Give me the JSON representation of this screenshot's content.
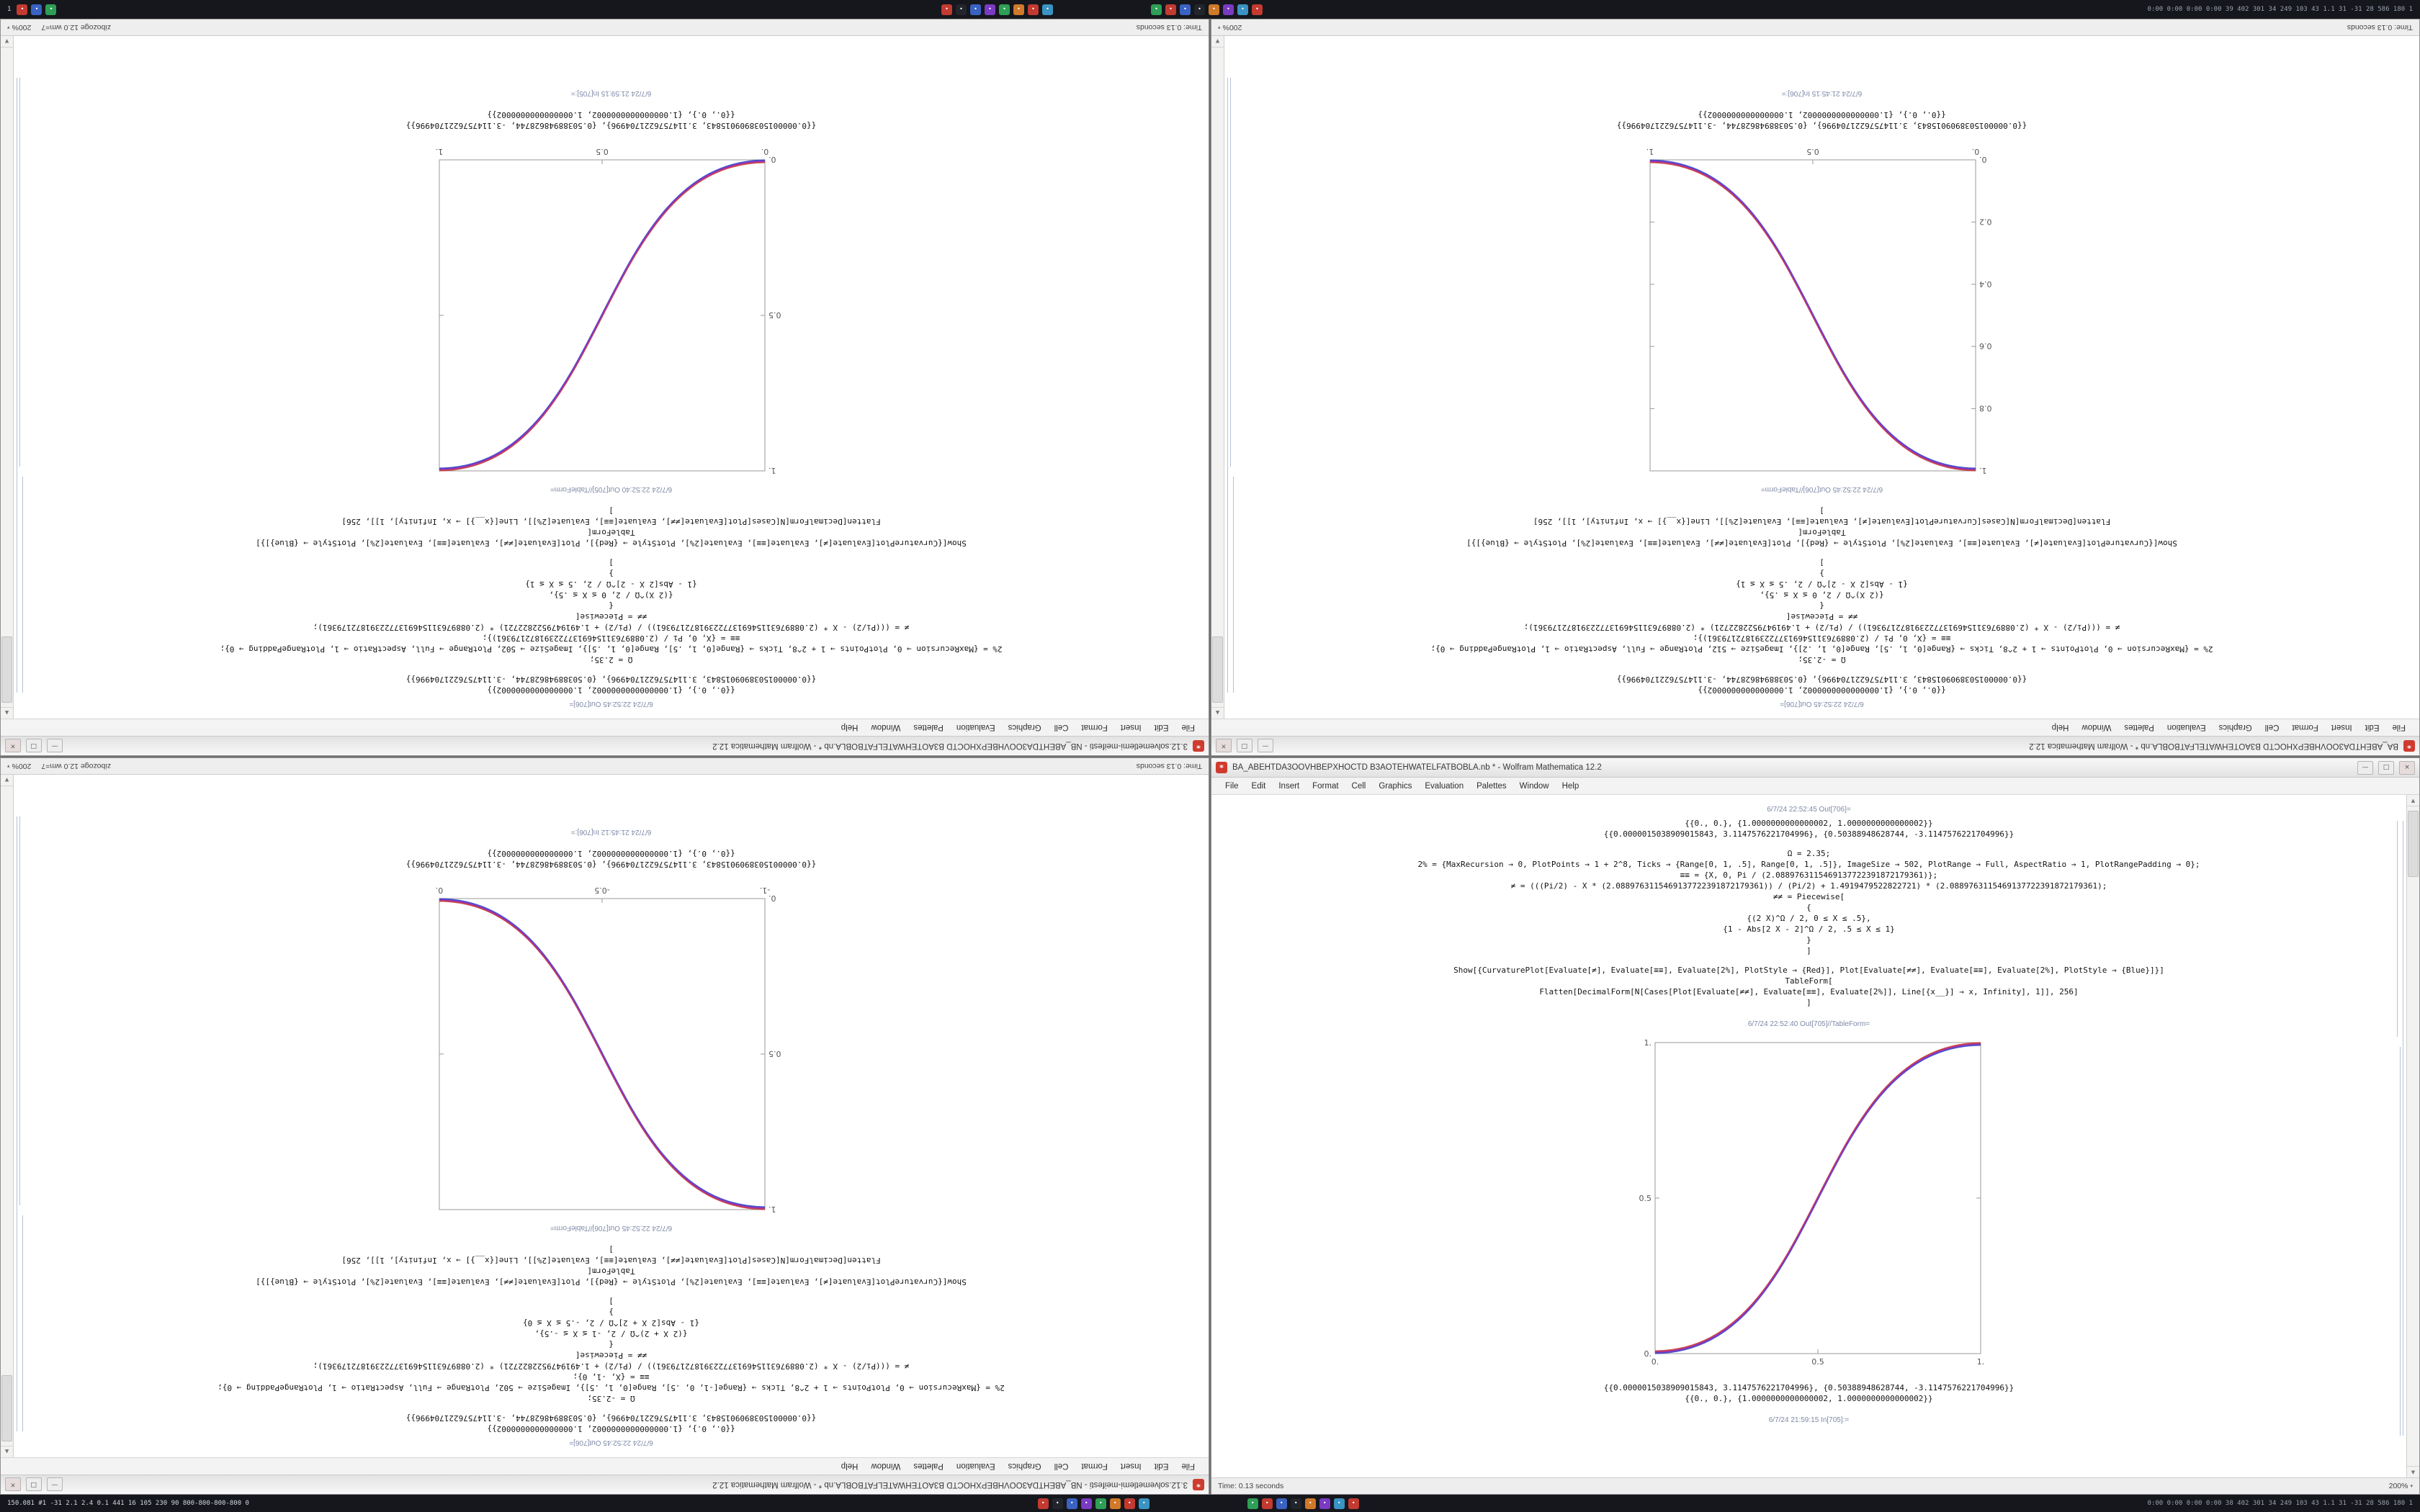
{
  "taskbar_top": {
    "left_text": "1",
    "icon_glyph": "•",
    "left_icons": [
      "#c23a30",
      "#3a62c2",
      "#2f9e57"
    ],
    "cluster1": [
      "#c23a30",
      "#23252d",
      "#3a62c2",
      "#7a3ac2",
      "#2f9e57",
      "#d0792a",
      "#c23a30",
      "#3a93c2"
    ],
    "cluster2": [
      "#2f9e57",
      "#c23a30",
      "#3a62c2",
      "#23252d",
      "#d0792a",
      "#7a3ac2",
      "#3a93c2",
      "#c23a30"
    ],
    "right_text": "0:00 0:00 0:00 0:00  39 402 301 34 249 103 43 1.1 31 -31 28  586 180 1"
  },
  "taskbar_bottom": {
    "left_text": "150.081 #1 -31 2.1 2.4 0.1 441 16 105 230 90  800-800-800-800 0",
    "icon_glyph": "•",
    "cluster1": [
      "#c23a30",
      "#23252d",
      "#3a62c2",
      "#7a3ac2",
      "#2f9e57",
      "#d0792a",
      "#c23a30",
      "#3a93c2"
    ],
    "cluster2": [
      "#2f9e57",
      "#c23a30",
      "#3a62c2",
      "#23252d",
      "#d0792a",
      "#7a3ac2",
      "#3a93c2",
      "#c23a30"
    ],
    "right_text": "0:00 0:00 0:00 0:00  38 402 301 34 249 103 43 1.1 31 -31 28  586 180 1"
  },
  "windows": {
    "tl": {
      "title": "3.12.solvemetlemi-meifesti - NB_ABEHTDA3OOVHBEPXHOCTD B3AOTEHWATELFATBOBLA.nb * - Wolfram Mathematica 12.2",
      "icons": {
        "doc": "*"
      },
      "buttons": {
        "min": "—",
        "max": "□",
        "close": "×"
      },
      "menu": [
        "File",
        "Edit",
        "Insert",
        "Format",
        "Cell",
        "Graphics",
        "Evaluation",
        "Palettes",
        "Window",
        "Help"
      ],
      "lines": [
        {
          "k": "label",
          "t": "6/7/24 22:52:45 Out[706]="
        },
        {
          "k": "num",
          "t": "{{0., 0.}, {1.0000000000000002, 1.0000000000000002}}"
        },
        {
          "k": "num",
          "t": "{{0.0000015038909015843, 3.1147576221704996}, {0.50388948628744, -3.1147576221704996}}"
        },
        {
          "k": "gap",
          "t": ""
        },
        {
          "k": "code",
          "t": "Ω = 2.35;"
        },
        {
          "k": "code",
          "t": "2% = {MaxRecursion → 0, PlotPoints → 1 + 2^8, Ticks → {Range[0, 1, .5], Range[0, 1, .5]}, ImageSize → 502, PlotRange → Full, AspectRatio → 1, PlotRangePadding → 0};"
        },
        {
          "k": "code",
          "t": "≡≡ = {X, 0, Pi / (2.0889763115469137722391872179361)};"
        },
        {
          "k": "code",
          "t": "≠ = (((Pi/2) - X * (2.0889763115469137722391872179361)) / (Pi/2) + 1.4919479522822721) * (2.0889763115469137722391872179361);"
        },
        {
          "k": "code",
          "t": "≠≠ = Piecewise["
        },
        {
          "k": "code",
          "t": "{"
        },
        {
          "k": "code",
          "t": "{(2 X)^Ω / 2, 0 ≤ X ≤ .5},"
        },
        {
          "k": "code",
          "t": "{1 - Abs[2 X - 2]^Ω / 2, .5 ≤ X ≤ 1}"
        },
        {
          "k": "code",
          "t": "}"
        },
        {
          "k": "code",
          "t": "]"
        },
        {
          "k": "gap",
          "t": ""
        },
        {
          "k": "code",
          "t": "Show[{CurvaturePlot[Evaluate[≠], Evaluate[≡≡], Evaluate[2%], PlotStyle → {Red}], Plot[Evaluate[≠≠], Evaluate[≡≡], Evaluate[2%], PlotStyle → {Blue}]}]"
        },
        {
          "k": "code",
          "t": "TableForm["
        },
        {
          "k": "code",
          "t": "Flatten[DecimalForm[N[Cases[Plot[Evaluate[≠≠], Evaluate[≡≡], Evaluate[2%]], Line[{x__}] → x, Infinity], 1]], 256]"
        },
        {
          "k": "code",
          "t": "]"
        },
        {
          "k": "gap",
          "t": ""
        },
        {
          "k": "label",
          "t": "6/7/24 22:52:40 Out[705]//TableForm="
        }
      ],
      "plot": {
        "curve": "asc",
        "x_ticks": [
          "0.",
          "0.5",
          "1."
        ],
        "y_ticks": [
          "0.",
          "0.5",
          "1."
        ],
        "colors": {
          "red": "#c62828",
          "blue": "#2833c6",
          "purple": "#9b30b0"
        }
      },
      "lines_after": [
        {
          "k": "num",
          "t": "{{0.0000015038909015843, 3.1147576221704996}, {0.50388948628744, -3.1147576221704996}}"
        },
        {
          "k": "num",
          "t": "{{0., 0.}, {1.0000000000000002, 1.0000000000000002}}"
        },
        {
          "k": "gap",
          "t": ""
        },
        {
          "k": "label",
          "t": "6/7/24 21:59:15 In[705]:="
        }
      ],
      "status": {
        "time": "Time: 0.13 seconds",
        "app": "zibozoge 12.0 wm=7",
        "zoom": "200%",
        "caret": "▾"
      }
    },
    "tr": {
      "title": "BA_ABEHTDA3OOVHBEPXHOCTD B3AOTEHWATELFATBOBLA.nb * - Wolfram Mathematica 12.2",
      "icons": {
        "doc": "*"
      },
      "buttons": {
        "min": "—",
        "max": "□",
        "close": "×"
      },
      "menu": [
        "File",
        "Edit",
        "Insert",
        "Format",
        "Cell",
        "Graphics",
        "Evaluation",
        "Palettes",
        "Window",
        "Help"
      ],
      "lines": [
        {
          "k": "label",
          "t": "6/7/24 22:52:45 Out[706]="
        },
        {
          "k": "num",
          "t": "{{0., 0.}, {1.0000000000000002, 1.0000000000000002}}"
        },
        {
          "k": "num",
          "t": "{{0.0000015038909015843, 3.1147576221704996}, {0.50388948628744, -3.1147576221704996}}"
        },
        {
          "k": "gap",
          "t": ""
        },
        {
          "k": "code",
          "t": "Ω = -2.35;"
        },
        {
          "k": "code",
          "t": "2% = {MaxRecursion → 0, PlotPoints → 1 + 2^8, Ticks → {Range[0, 1, .5], Range[0, 1, .2]}, ImageSize → 512, PlotRange → Full, AspectRatio → 1, PlotRangePadding → 0};"
        },
        {
          "k": "code",
          "t": "≡≡ = {X, 0, Pi / (2.0889763115469137722391872179361)};"
        },
        {
          "k": "code",
          "t": "≠ = (((Pi/2) - X * (2.0889763115469137722391872179361)) / (Pi/2) + 1.4919479522822721) * (2.0889763115469137722391872179361);"
        },
        {
          "k": "code",
          "t": "≠≠ = Piecewise["
        },
        {
          "k": "code",
          "t": "{"
        },
        {
          "k": "code",
          "t": "{(2 X)^Ω / 2, 0 ≤ X ≤ .5},"
        },
        {
          "k": "code",
          "t": "{1 - Abs[2 X - 2]^Ω / 2, .5 ≤ X ≤ 1}"
        },
        {
          "k": "code",
          "t": "}"
        },
        {
          "k": "code",
          "t": "]"
        },
        {
          "k": "gap",
          "t": ""
        },
        {
          "k": "code",
          "t": "Show[{CurvaturePlot[Evaluate[≠], Evaluate[≡≡], Evaluate[2%], PlotStyle → {Red}], Plot[Evaluate[≠≠], Evaluate[≡≡], Evaluate[2%], PlotStyle → {Blue}]}]"
        },
        {
          "k": "code",
          "t": "TableForm["
        },
        {
          "k": "code",
          "t": "Flatten[DecimalForm[N[Cases[CurvaturePlot[Evaluate[≠], Evaluate[≡≡], Evaluate[2%]], Line[{x__}] → x, Infinity], 1]], 256]"
        },
        {
          "k": "code",
          "t": "]"
        },
        {
          "k": "gap",
          "t": ""
        },
        {
          "k": "label",
          "t": "6/7/24 22:52:45 Out[706]//TableForm="
        }
      ],
      "plot": {
        "curve": "desc",
        "x_ticks": [
          "0.",
          "0.5",
          "1."
        ],
        "y_ticks": [
          "0.",
          "0.2",
          "0.4",
          "0.6",
          "0.8",
          "1."
        ],
        "colors": {
          "red": "#c62828",
          "blue": "#2833c6",
          "purple": "#9b30b0"
        }
      },
      "lines_after": [
        {
          "k": "num",
          "t": "{{0.0000015038909015843, 3.1147576221704996}, {0.50388948628744, -3.1147576221704996}}"
        },
        {
          "k": "num",
          "t": "{{0., 0.}, {1.0000000000000002, 1.0000000000000002}}"
        },
        {
          "k": "gap",
          "t": ""
        },
        {
          "k": "label",
          "t": "6/7/24 21:45:15 In[706]:="
        }
      ],
      "status": {
        "time": "Time: 0.13 seconds",
        "app": "",
        "zoom": "200%",
        "caret": "▾"
      }
    },
    "bl": {
      "title": "3.12.solvemetlemi-meifesti - NB_ABEHTDA3OOVHBEPXHOCTD B3AOTEHWATELFATBOBLA.nb * - Wolfram Mathematica 12.2",
      "icons": {
        "doc": "*"
      },
      "buttons": {
        "min": "—",
        "max": "□",
        "close": "×"
      },
      "menu": [
        "File",
        "Edit",
        "Insert",
        "Format",
        "Cell",
        "Graphics",
        "Evaluation",
        "Palettes",
        "Window",
        "Help"
      ],
      "lines": [
        {
          "k": "label",
          "t": "6/7/24 22:52:45 Out[706]="
        },
        {
          "k": "num",
          "t": "{{0., 0.}, {1.0000000000000002, 1.0000000000000002}}"
        },
        {
          "k": "num",
          "t": "{{0.0000015038909015843, 3.1147576221704996}, {0.50388948628744, -3.1147576221704996}}"
        },
        {
          "k": "gap",
          "t": ""
        },
        {
          "k": "code",
          "t": "Ω = -2.35;"
        },
        {
          "k": "code",
          "t": "2% = {MaxRecursion → 0, PlotPoints → 1 + 2^8, Ticks → {Range[-1, 0, .5], Range[0, 1, .5]}, ImageSize → 502, PlotRange → Full, AspectRatio → 1, PlotRangePadding → 0};"
        },
        {
          "k": "code",
          "t": "≡≡ = {X, -1, 0};"
        },
        {
          "k": "code",
          "t": "≠ = (((Pi/2) - X * (2.0889763115469137722391872179361)) / (Pi/2) + 1.4919479522822721) * (2.0889763115469137722391872179361);"
        },
        {
          "k": "code",
          "t": "≠≠ = Piecewise["
        },
        {
          "k": "code",
          "t": "{"
        },
        {
          "k": "code",
          "t": "{(2 X + 2)^Ω / 2, -1 ≤ X ≤ -.5},"
        },
        {
          "k": "code",
          "t": "{1 - Abs[2 X + 2]^Ω / 2, -.5 ≤ X ≤ 0}"
        },
        {
          "k": "code",
          "t": "}"
        },
        {
          "k": "code",
          "t": "]"
        },
        {
          "k": "gap",
          "t": ""
        },
        {
          "k": "code",
          "t": "Show[{CurvaturePlot[Evaluate[≠], Evaluate[≡≡], Evaluate[2%], PlotStyle → {Red}], Plot[Evaluate[≠≠], Evaluate[≡≡], Evaluate[2%], PlotStyle → {Blue}]}]"
        },
        {
          "k": "code",
          "t": "TableForm["
        },
        {
          "k": "code",
          "t": "Flatten[DecimalForm[N[Cases[Plot[Evaluate[≠≠], Evaluate[≡≡], Evaluate[2%]], Line[{x__}] → x, Infinity], 1]], 256]"
        },
        {
          "k": "code",
          "t": "]"
        },
        {
          "k": "gap",
          "t": ""
        },
        {
          "k": "label",
          "t": "6/7/24 22:52:45 Out[706]//TableForm="
        }
      ],
      "plot": {
        "curve": "desc",
        "x_ticks": [
          "-1.",
          "-0.5",
          "0."
        ],
        "y_ticks": [
          "0.",
          "0.5",
          "1."
        ],
        "colors": {
          "red": "#c62828",
          "blue": "#2833c6",
          "purple": "#9b30b0"
        }
      },
      "lines_after": [
        {
          "k": "num",
          "t": "{{0.0000015038909015843, 3.1147576221704996}, {0.50388948628744, -3.1147576221704996}}"
        },
        {
          "k": "num",
          "t": "{{0., 0.}, {1.0000000000000002, 1.0000000000000002}}"
        },
        {
          "k": "gap",
          "t": ""
        },
        {
          "k": "label",
          "t": "6/7/24 21:45:12 In[706]:="
        }
      ],
      "status": {
        "time": "Time: 0.13 seconds",
        "app": "zibozoge 12.0 wm=7",
        "zoom": "200%",
        "caret": "▾"
      }
    },
    "br": {
      "title": "BA_ABEHTDA3OOVHBEPXHOCTD B3AOTEHWATELFATBOBLA.nb * - Wolfram Mathematica 12.2",
      "icons": {
        "doc": "*"
      },
      "buttons": {
        "min": "—",
        "max": "□",
        "close": "×"
      },
      "menu": [
        "File",
        "Edit",
        "Insert",
        "Format",
        "Cell",
        "Graphics",
        "Evaluation",
        "Palettes",
        "Window",
        "Help"
      ],
      "lines": [
        {
          "k": "label",
          "t": "6/7/24 22:52:45 Out[706]="
        },
        {
          "k": "num",
          "t": "{{0., 0.}, {1.0000000000000002, 1.0000000000000002}}"
        },
        {
          "k": "num",
          "t": "{{0.0000015038909015843, 3.1147576221704996}, {0.50388948628744, -3.1147576221704996}}"
        },
        {
          "k": "gap",
          "t": ""
        },
        {
          "k": "code",
          "t": "Ω = 2.35;"
        },
        {
          "k": "code",
          "t": "2% = {MaxRecursion → 0, PlotPoints → 1 + 2^8, Ticks → {Range[0, 1, .5], Range[0, 1, .5]}, ImageSize → 502, PlotRange → Full, AspectRatio → 1, PlotRangePadding → 0};"
        },
        {
          "k": "code",
          "t": "≡≡ = {X, 0, Pi / (2.0889763115469137722391872179361)};"
        },
        {
          "k": "code",
          "t": "≠ = (((Pi/2) - X * (2.0889763115469137722391872179361)) / (Pi/2) + 1.4919479522822721) * (2.0889763115469137722391872179361);"
        },
        {
          "k": "code",
          "t": "≠≠ = Piecewise["
        },
        {
          "k": "code",
          "t": "{"
        },
        {
          "k": "code",
          "t": "{(2 X)^Ω / 2, 0 ≤ X ≤ .5},"
        },
        {
          "k": "code",
          "t": "{1 - Abs[2 X - 2]^Ω / 2, .5 ≤ X ≤ 1}"
        },
        {
          "k": "code",
          "t": "}"
        },
        {
          "k": "code",
          "t": "]"
        },
        {
          "k": "gap",
          "t": ""
        },
        {
          "k": "code",
          "t": "Show[{CurvaturePlot[Evaluate[≠], Evaluate[≡≡], Evaluate[2%], PlotStyle → {Red}], Plot[Evaluate[≠≠], Evaluate[≡≡], Evaluate[2%], PlotStyle → {Blue}]}]"
        },
        {
          "k": "code",
          "t": "TableForm["
        },
        {
          "k": "code",
          "t": "Flatten[DecimalForm[N[Cases[Plot[Evaluate[≠≠], Evaluate[≡≡], Evaluate[2%]], Line[{x__}] → x, Infinity], 1]], 256]"
        },
        {
          "k": "code",
          "t": "]"
        },
        {
          "k": "gap",
          "t": ""
        },
        {
          "k": "label",
          "t": "6/7/24 22:52:40 Out[705]//TableForm="
        }
      ],
      "plot": {
        "curve": "asc",
        "x_ticks": [
          "0.",
          "0.5",
          "1."
        ],
        "y_ticks": [
          "0.",
          "0.5",
          "1."
        ],
        "colors": {
          "red": "#c62828",
          "blue": "#2833c6",
          "purple": "#9b30b0"
        }
      },
      "lines_after": [
        {
          "k": "num",
          "t": "{{0.0000015038909015843, 3.1147576221704996}, {0.50388948628744, -3.1147576221704996}}"
        },
        {
          "k": "num",
          "t": "{{0., 0.}, {1.0000000000000002, 1.0000000000000002}}"
        },
        {
          "k": "gap",
          "t": ""
        },
        {
          "k": "label",
          "t": "6/7/24 21:59:15 In[705]:="
        }
      ],
      "status": {
        "time": "Time: 0.13 seconds",
        "app": "",
        "zoom": "200%",
        "caret": "▾"
      }
    }
  }
}
